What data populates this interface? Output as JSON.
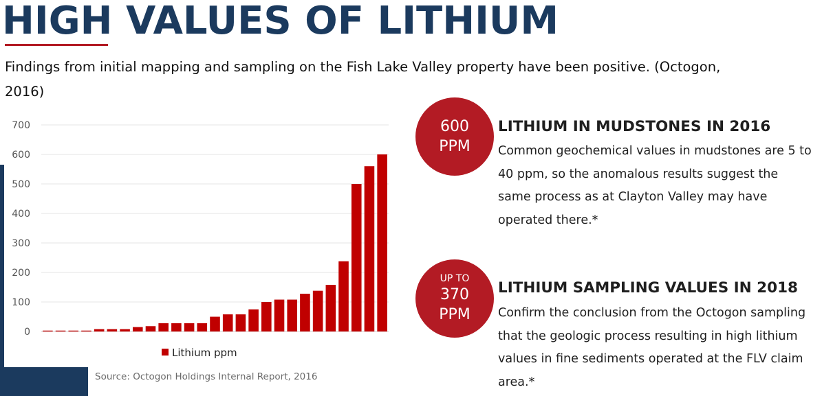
{
  "header": {
    "title": "HIGH VALUES OF LITHIUM",
    "subtitle": "Findings from initial mapping and sampling on the Fish Lake Valley property have been positive. (Octogon, 2016)"
  },
  "colors": {
    "navy": "#1b3a5e",
    "red": "#b31b24",
    "bar": "#c00000"
  },
  "chart_data": {
    "type": "bar",
    "title": "",
    "xlabel": "",
    "ylabel": "",
    "ylim": [
      0,
      700
    ],
    "yticks": [
      0,
      100,
      200,
      300,
      400,
      500,
      600,
      700
    ],
    "grid": true,
    "legend": "bottom",
    "series": [
      {
        "name": "Lithium ppm",
        "values": [
          3,
          3,
          3,
          3,
          8,
          8,
          8,
          15,
          18,
          28,
          28,
          28,
          28,
          50,
          58,
          58,
          75,
          100,
          108,
          108,
          128,
          138,
          158,
          238,
          500,
          560,
          600
        ]
      }
    ],
    "source": "Source: Octogon Holdings Internal Report, 2016"
  },
  "sections": [
    {
      "badge_top": "",
      "badge_value": "600",
      "badge_unit": "PPM",
      "title": "LITHIUM IN MUDSTONES IN 2016",
      "body": "Common geochemical values in mudstones are 5 to 40 ppm, so the anomalous results suggest the same process as at Clayton Valley may have operated there.*"
    },
    {
      "badge_top": "UP TO",
      "badge_value": "370",
      "badge_unit": "PPM",
      "title": "LITHIUM SAMPLING VALUES IN 2018",
      "body": "Confirm the conclusion from the Octogon sampling that the geologic process resulting in high lithium values in fine sediments operated at the FLV claim area.*"
    }
  ]
}
